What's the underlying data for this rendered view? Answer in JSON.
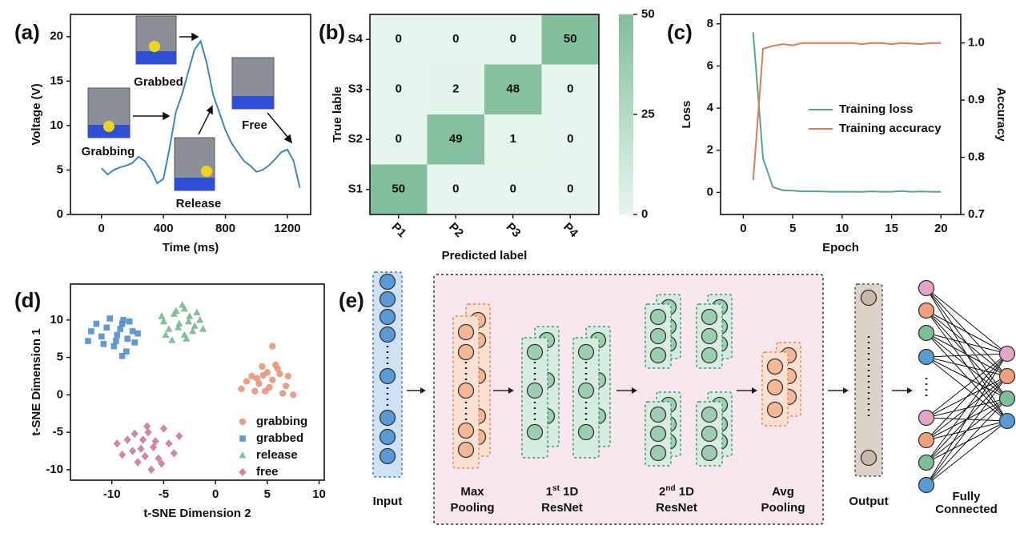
{
  "chart_data": [
    {
      "panel": "(a)",
      "type": "line",
      "xlabel": "Time (ms)",
      "ylabel": "Voltage (V)",
      "x": [
        0,
        40,
        80,
        120,
        160,
        200,
        240,
        280,
        320,
        360,
        400,
        440,
        480,
        520,
        560,
        600,
        640,
        680,
        720,
        760,
        800,
        840,
        880,
        920,
        960,
        1000,
        1040,
        1080,
        1120,
        1160,
        1200,
        1240,
        1280
      ],
      "series": [
        {
          "color": "#3d85c6",
          "values": [
            5.2,
            4.5,
            5.0,
            5.3,
            5.5,
            5.8,
            6.5,
            6.0,
            5.0,
            3.5,
            4.0,
            7.5,
            11.5,
            13.5,
            16.0,
            18.5,
            19.5,
            17.0,
            13.5,
            11.5,
            9.5,
            8.0,
            7.0,
            6.0,
            5.5,
            4.8,
            5.0,
            5.5,
            6.2,
            7.0,
            7.3,
            6.0,
            3.0
          ]
        }
      ],
      "xlim": [
        -200,
        1350
      ],
      "ylim": [
        0,
        22.5
      ],
      "xticks": [
        0,
        400,
        800,
        1200
      ],
      "yticks": [
        0,
        5,
        10,
        15,
        20
      ],
      "annotations": [
        "Grabbing",
        "Grabbed",
        "Release",
        "Free"
      ]
    },
    {
      "panel": "(b)",
      "type": "heatmap",
      "xlabel": "Predicted label",
      "ylabel": "True lable",
      "categories": [
        "P1",
        "P2",
        "P3",
        "P4"
      ],
      "rows": [
        "S4",
        "S3",
        "S2",
        "S1"
      ],
      "values": [
        [
          0,
          0,
          0,
          50
        ],
        [
          0,
          2,
          48,
          0
        ],
        [
          0,
          49,
          1,
          0
        ],
        [
          50,
          0,
          0,
          0
        ]
      ],
      "colorbar": {
        "lim": [
          0,
          50
        ],
        "ticks": [
          0,
          25,
          50
        ],
        "colors": [
          "#e6f6ee",
          "#82bf9b"
        ]
      }
    },
    {
      "panel": "(c)",
      "type": "line",
      "xlabel": "Epoch",
      "ylabel": "Loss",
      "y2label": "Accuracy",
      "x": [
        1,
        2,
        3,
        4,
        5,
        6,
        7,
        8,
        9,
        10,
        11,
        12,
        13,
        14,
        15,
        16,
        17,
        18,
        19,
        20
      ],
      "series": [
        {
          "name": "Training loss",
          "color": "#5aa58a",
          "values": [
            7.6,
            1.6,
            0.25,
            0.1,
            0.08,
            0.05,
            0.05,
            0.04,
            0.03,
            0.03,
            0.03,
            0.02,
            0.05,
            0.03,
            0.03,
            0.06,
            0.03,
            0.04,
            0.03,
            0.02
          ]
        },
        {
          "name": "Training accuracy",
          "color": "#e07b5a",
          "axis": "y2",
          "values": [
            0.76,
            0.99,
            0.995,
            0.998,
            0.996,
            1.0,
            1.0,
            1.0,
            1.0,
            1.0,
            1.0,
            0.998,
            1.0,
            1.0,
            0.998,
            1.0,
            0.999,
            0.998,
            1.0,
            1.0
          ]
        }
      ],
      "xlim": [
        -2.3,
        22
      ],
      "ylim": [
        -1.05,
        8.45
      ],
      "y2lim": [
        0.7,
        1.05
      ],
      "xticks": [
        0,
        5,
        10,
        15,
        20
      ],
      "yticks": [
        0,
        2,
        4,
        6,
        8
      ],
      "y2ticks": [
        0.7,
        0.8,
        0.9,
        {
          "value": 1,
          "label": "1.0"
        }
      ]
    },
    {
      "panel": "(d)",
      "type": "scatter",
      "xlabel": "t-SNE Dimension 2",
      "ylabel": "t-SNE Dimension 1",
      "series": [
        {
          "name": "grabbing",
          "color": "#e8967a",
          "marker": "circle",
          "x": [
            3.5,
            4.2,
            5.0,
            5.5,
            6.2,
            4.8,
            6.8,
            3.0,
            5.8,
            4.5,
            7.0,
            2.5,
            5.2,
            6.5,
            4.0,
            5.5,
            7.5,
            3.8,
            6.0,
            4.6
          ],
          "values": [
            2.5,
            1.5,
            3.0,
            2.0,
            2.8,
            0.5,
            1.2,
            1.8,
            4.0,
            3.8,
            2.5,
            0.8,
            1.0,
            0.2,
            2.2,
            6.5,
            0.0,
            0.5,
            3.5,
            2.6
          ]
        },
        {
          "name": "grabbed",
          "color": "#4f8fd0",
          "marker": "square",
          "x": [
            -9.5,
            -10.5,
            -8.5,
            -9.0,
            -8.0,
            -11.0,
            -12.0,
            -9.8,
            -8.6,
            -10.2,
            -7.8,
            -9.2,
            -12.3,
            -8.3,
            -10.8,
            -9.0,
            -11.5,
            -7.5,
            -9.6,
            -8.9
          ],
          "values": [
            8.0,
            9.0,
            7.5,
            9.5,
            8.5,
            7.8,
            8.5,
            6.5,
            5.8,
            10.2,
            7.0,
            8.8,
            7.2,
            9.8,
            6.8,
            5.2,
            9.5,
            8.2,
            7.2,
            10.0
          ]
        },
        {
          "name": "release",
          "color": "#77b98f",
          "marker": "triangle",
          "x": [
            -3.5,
            -2.5,
            -4.5,
            -3.0,
            -2.0,
            -4.0,
            -3.2,
            -5.0,
            -1.5,
            -2.8,
            -4.8,
            -3.8,
            -2.2,
            -1.8,
            -3.6,
            -4.2,
            -2.6,
            -5.2,
            -3.0,
            -1.2
          ],
          "values": [
            9.5,
            10.5,
            8.8,
            8.0,
            9.2,
            10.8,
            12.0,
            9.8,
            10.0,
            7.5,
            8.0,
            11.2,
            8.5,
            11.0,
            9.0,
            7.3,
            9.8,
            10.5,
            11.5,
            8.8
          ]
        },
        {
          "name": "free",
          "color": "#cc7a9a",
          "marker": "diamond",
          "x": [
            -6.0,
            -7.0,
            -5.5,
            -8.0,
            -6.5,
            -4.5,
            -7.5,
            -5.0,
            -8.5,
            -6.2,
            -4.0,
            -9.0,
            -7.2,
            -5.8,
            -6.8,
            -3.5,
            -9.5,
            -5.2,
            -6.6,
            -7.8
          ],
          "values": [
            -7.0,
            -6.0,
            -8.5,
            -7.5,
            -5.0,
            -6.5,
            -9.0,
            -4.5,
            -6.0,
            -10.0,
            -7.8,
            -8.0,
            -7.2,
            -6.2,
            -8.2,
            -5.5,
            -6.5,
            -9.2,
            -4.2,
            -5.2
          ]
        }
      ],
      "xlim": [
        -14,
        10.5
      ],
      "ylim": [
        -11.4,
        14.8
      ],
      "xticks": [
        -10,
        -5,
        0,
        5,
        10
      ],
      "yticks": [
        -10,
        -5,
        0,
        5,
        10
      ]
    }
  ],
  "diagram": {
    "panel": "(e)",
    "input": "Input",
    "max_pooling": [
      "Max",
      "Pooling"
    ],
    "resnet1": {
      "pre": "1",
      "sup": "st",
      "post": " 1D",
      "line2": "ResNet"
    },
    "resnet2": {
      "pre": "2",
      "sup": "nd",
      "post": " 1D",
      "line2": "ResNet"
    },
    "avg_pooling": [
      "Avg",
      "Pooling"
    ],
    "output": "Output",
    "fully_connected": [
      "Fully",
      "Connected"
    ]
  }
}
